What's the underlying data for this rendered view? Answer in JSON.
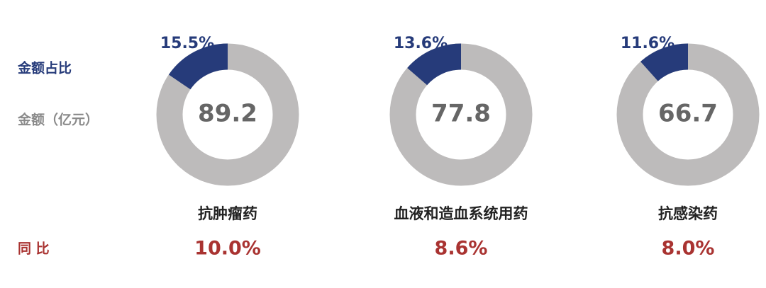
{
  "labels": {
    "share": "金额占比",
    "amount": "金额（亿元）",
    "yoy": "同 比"
  },
  "chart_data": [
    {
      "type": "pie",
      "category": "抗肿瘤药",
      "values": [
        15.5
      ],
      "value_labels": [
        "15.5%"
      ],
      "amount": 89.2,
      "growth": 10.0,
      "growth_label": "10.0%",
      "color": "#263b7a",
      "rest_color": "#bdbbbb"
    },
    {
      "type": "pie",
      "category": "血液和造血系统用药",
      "values": [
        13.6
      ],
      "value_labels": [
        "13.6%"
      ],
      "amount": 77.8,
      "growth": 8.6,
      "growth_label": "8.6%",
      "color": "#263b7a",
      "rest_color": "#bdbbbb"
    },
    {
      "type": "pie",
      "category": "抗感染药",
      "values": [
        11.6
      ],
      "value_labels": [
        "11.6%"
      ],
      "amount": 66.7,
      "growth": 8.0,
      "growth_label": "8.0%",
      "color": "#263b7a",
      "rest_color": "#bdbbbb"
    }
  ]
}
